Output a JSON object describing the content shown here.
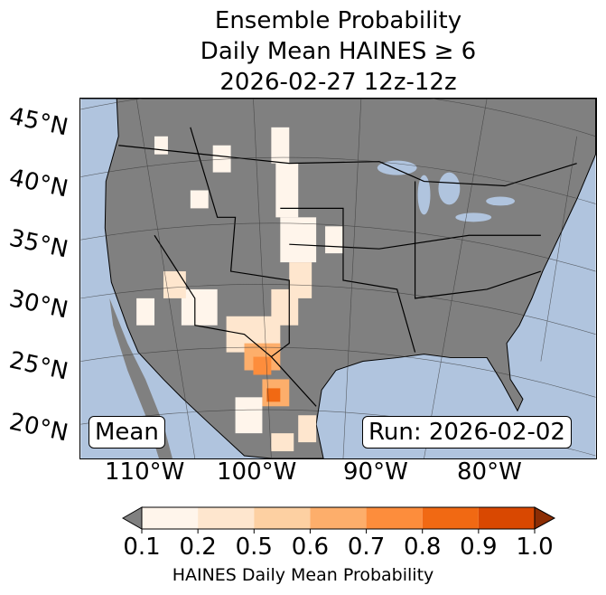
{
  "title": {
    "line1": "Ensemble Probability",
    "line2": "Daily Mean HAINES ≥ 6",
    "line3": "2026-02-27 12z-12z"
  },
  "lat_labels": [
    "45°N",
    "40°N",
    "35°N",
    "30°N",
    "25°N",
    "20°N"
  ],
  "lon_labels": [
    "110°W",
    "100°W",
    "90°W",
    "80°W"
  ],
  "mean_label": "Mean",
  "run_label": "Run: 2026-02-02",
  "colorbar": {
    "ticks": [
      "0.1",
      "0.2",
      "0.5",
      "0.6",
      "0.7",
      "0.8",
      "0.9",
      "1.0"
    ],
    "colors": [
      "#fff5eb",
      "#fee6ce",
      "#fdd0a2",
      "#fdae6b",
      "#fd8d3c",
      "#f16913",
      "#d94801"
    ],
    "under_color": "#808080",
    "over_color": "#8c2d04",
    "title": "HAINES Daily Mean Probability"
  },
  "colors": {
    "ocean": "#b0c4de",
    "land": "#808080"
  }
}
